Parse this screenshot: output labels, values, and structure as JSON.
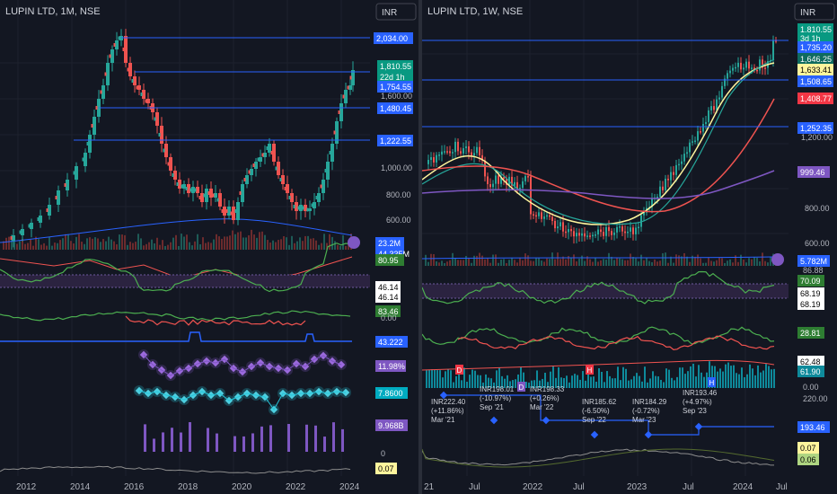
{
  "left": {
    "title": "LUPIN LTD, 1M, NSE",
    "currency": "INR",
    "price_tags": {
      "last": "1,810.55",
      "countdown": "22d 1h",
      "l2034": "2,034.00",
      "l1754": "1,754.55",
      "l1480": "1,480.45",
      "l1222": "1,222.55",
      "vol": "23.2M",
      "vol2": "44.335M",
      "ind1": "80.95",
      "ind2a": "46.14",
      "ind2b": "46.14",
      "ind3": "83.46",
      "ind3b": "0.00",
      "ind4": "43.222",
      "ind5": "11.98%",
      "ind6": "7.8600",
      "ind7": "9.968B",
      "ind7b": "0",
      "ind8": "0.07"
    },
    "price_scale": [
      "1,600.00",
      "1,000.00",
      "800.00",
      "600.00"
    ],
    "years": [
      "2012",
      "2014",
      "2016",
      "2018",
      "2020",
      "2022",
      "2024"
    ]
  },
  "right": {
    "title": "LUPIN LTD, 1W, NSE",
    "currency": "INR",
    "price_tags": {
      "last": "1,810.55",
      "countdown": "3d 1h",
      "l1735": "1,735.20",
      "l1646": "1,646.25",
      "l1633": "1,633.41",
      "l1508": "1,508.65",
      "l1408": "1,408.77",
      "l1252": "1,252.35",
      "l999": "999.46",
      "vol": "5.782M",
      "ind1a": "86.88",
      "ind1b": "70.09",
      "ind1c": "68.19",
      "ind1d": "68.19",
      "ind2": "28.81",
      "ind3a": "62.48",
      "ind3b": "61.90",
      "ind3c": "0.00",
      "ind4a": "220.00",
      "ind4b": "193.46",
      "ind5a": "0.07",
      "ind5b": "0.06"
    },
    "price_scale": [
      "1,200.00",
      "800.00",
      "600.00"
    ],
    "annotations": [
      {
        "line1": "INR222.40",
        "line2": "(+11.86%)",
        "line3": "Mar '21"
      },
      {
        "line1": "INR198.01",
        "line2": "(-10.97%)",
        "line3": "Sep '21"
      },
      {
        "line1": "INR198.33",
        "line2": "(+0.26%)",
        "line3": "Mar '22"
      },
      {
        "line1": "INR185.62",
        "line2": "(-6.50%)",
        "line3": "Sep '22"
      },
      {
        "line1": "INR184.29",
        "line2": "(-0.72%)",
        "line3": "Mar '23"
      },
      {
        "line1": "INR193.46",
        "line2": "(+4.97%)",
        "line3": "Sep '23"
      }
    ],
    "markers": [
      "D",
      "D",
      "H",
      "H"
    ],
    "dates": [
      "21",
      "Jul",
      "2022",
      "Jul",
      "2023",
      "Jul",
      "2024",
      "Jul"
    ]
  },
  "colors": {
    "bg": "#131722",
    "grid": "#1e222d",
    "up": "#26a69a",
    "down": "#ef5350",
    "hline": "#2962ff",
    "tag_blue": "#2962ff",
    "tag_green": "#089981",
    "tag_red": "#f23645",
    "tag_purple": "#7e57c2",
    "yellow_ma": "#fff59d",
    "red_ma": "#ef5350",
    "purple_ma": "#7e57c2",
    "teal_ma": "#26c6da"
  }
}
